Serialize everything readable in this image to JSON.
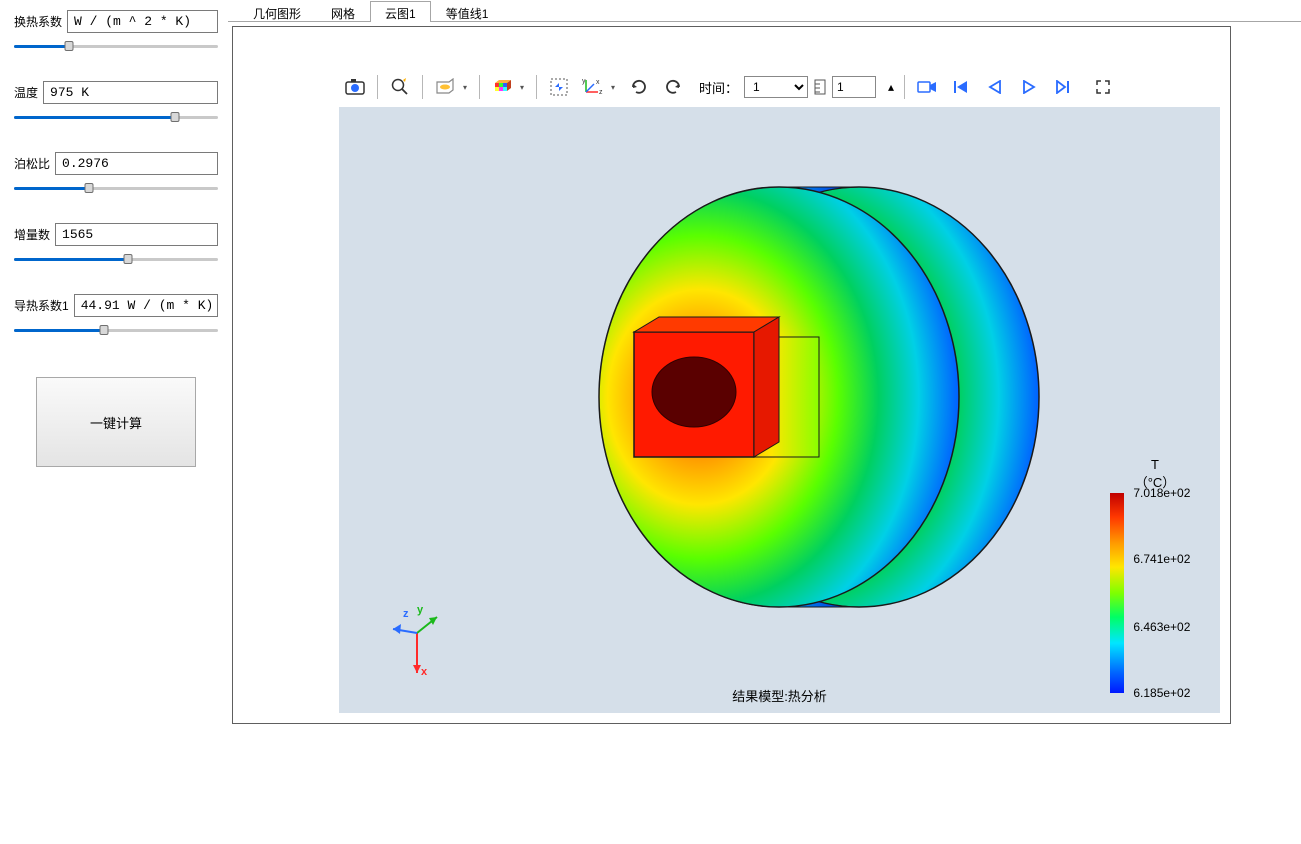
{
  "sidebar": {
    "params": [
      {
        "label": "换热系数",
        "value": "W / (m ^ 2 * K)",
        "slider_pct": 27
      },
      {
        "label": "温度",
        "value": "975 K",
        "slider_pct": 79
      },
      {
        "label": "泊松比",
        "value": "0.2976",
        "slider_pct": 37
      },
      {
        "label": "增量数",
        "value": "1565",
        "slider_pct": 56
      },
      {
        "label": "导热系数1",
        "value": "44.91 W / (m * K)",
        "slider_pct": 44
      }
    ],
    "calc_button": "一键计算"
  },
  "tabs": [
    {
      "label": "几何图形",
      "active": false
    },
    {
      "label": "网格",
      "active": false
    },
    {
      "label": "云图1",
      "active": true
    },
    {
      "label": "等值线1",
      "active": false
    }
  ],
  "toolbar": {
    "time_label": "时间：",
    "time_value": "1",
    "frame_value": "1"
  },
  "canvas": {
    "background": "#d5dfe9",
    "caption": "结果模型:热分析",
    "triad": {
      "x_color": "#ff2a2a",
      "y_color": "#1bb91b",
      "z_color": "#2a6cff",
      "labels": [
        "x",
        "y",
        "z"
      ]
    }
  },
  "colorbar": {
    "title_line1": "T",
    "title_line2": "（°C）",
    "ticks": [
      {
        "pos": 0,
        "label": "7.018e+02"
      },
      {
        "pos": 33,
        "label": "6.741e+02"
      },
      {
        "pos": 67,
        "label": "6.463e+02"
      },
      {
        "pos": 100,
        "label": "6.185e+02"
      }
    ],
    "gradient_stops": [
      "#c00000",
      "#ff3800",
      "#ff9a00",
      "#ffe600",
      "#7fff00",
      "#00ff64",
      "#00e6ff",
      "#0064ff",
      "#0018ff"
    ]
  },
  "model": {
    "type": "3d-thermal-contour",
    "disc_outline": "#1a1a1a",
    "hot_block_color": "#ff1a00",
    "hole_color": "#5a0000",
    "thermal_gradient": [
      "#ff2a00",
      "#ff9a00",
      "#ffe600",
      "#5aff00",
      "#00d060",
      "#00d0e6",
      "#0060ff",
      "#0020e6"
    ]
  }
}
